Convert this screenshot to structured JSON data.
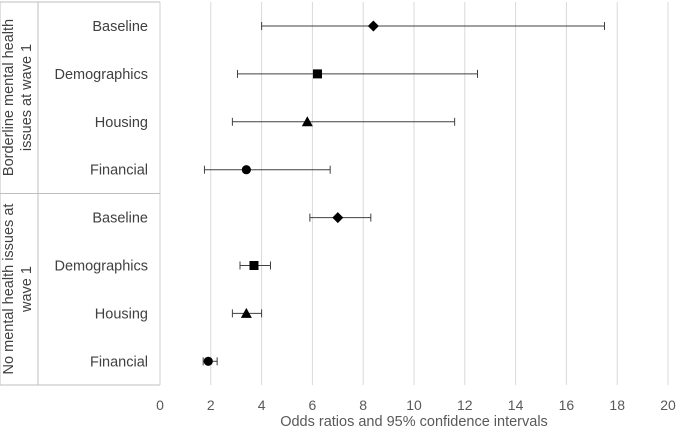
{
  "chart_data": {
    "type": "scatter",
    "subtype": "forest-plot",
    "xlabel": "Odds ratios and 95% confidence intervals",
    "xlim": [
      0,
      20
    ],
    "xticks": [
      0,
      2,
      4,
      6,
      8,
      10,
      12,
      14,
      16,
      18,
      20
    ],
    "grid": "vertical",
    "colors": {
      "marker": "#000000",
      "errorbar": "#404040",
      "grid": "#d9d9d9",
      "text": "#404040"
    },
    "groups": [
      {
        "label": "Borderline mental health issues at wave 1",
        "label_lines": [
          "Borderline mental health",
          "issues at wave 1"
        ],
        "rows": [
          {
            "label": "Baseline",
            "marker": "diamond",
            "or": 8.4,
            "ci_low": 4.0,
            "ci_high": 17.5
          },
          {
            "label": "Demographics",
            "marker": "square",
            "or": 6.2,
            "ci_low": 3.05,
            "ci_high": 12.5
          },
          {
            "label": "Housing",
            "marker": "triangle",
            "or": 5.8,
            "ci_low": 2.85,
            "ci_high": 11.6
          },
          {
            "label": "Financial",
            "marker": "circle",
            "or": 3.4,
            "ci_low": 1.75,
            "ci_high": 6.7
          }
        ]
      },
      {
        "label": "No mental health issues at wave 1",
        "label_lines": [
          "No mental health issues at",
          "wave 1"
        ],
        "rows": [
          {
            "label": "Baseline",
            "marker": "diamond",
            "or": 7.0,
            "ci_low": 5.9,
            "ci_high": 8.3
          },
          {
            "label": "Demographics",
            "marker": "square",
            "or": 3.7,
            "ci_low": 3.15,
            "ci_high": 4.35
          },
          {
            "label": "Housing",
            "marker": "triangle",
            "or": 3.4,
            "ci_low": 2.85,
            "ci_high": 4.0
          },
          {
            "label": "Financial",
            "marker": "circle",
            "or": 1.9,
            "ci_low": 1.7,
            "ci_high": 2.25
          }
        ]
      }
    ]
  }
}
